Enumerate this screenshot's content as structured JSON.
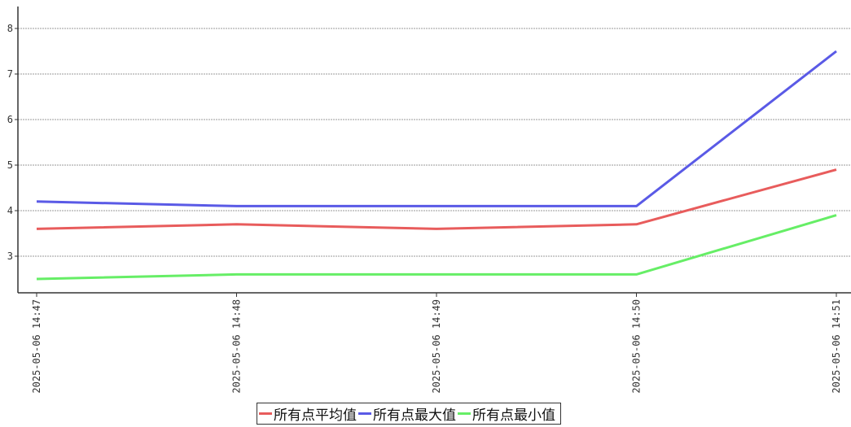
{
  "chart_data": {
    "type": "line",
    "x": [
      "2025-05-06 14:47",
      "2025-05-06 14:48",
      "2025-05-06 14:49",
      "2025-05-06 14:50",
      "2025-05-06 14:51"
    ],
    "series": [
      {
        "name": "所有点平均值",
        "color": "#e85c5c",
        "values": [
          3.6,
          3.7,
          3.6,
          3.7,
          4.9
        ]
      },
      {
        "name": "所有点最大值",
        "color": "#5a5ae6",
        "values": [
          4.2,
          4.1,
          4.1,
          4.1,
          7.5
        ]
      },
      {
        "name": "所有点最小值",
        "color": "#66ee66",
        "values": [
          2.5,
          2.6,
          2.6,
          2.6,
          3.9
        ]
      }
    ],
    "yticks": [
      3,
      4,
      5,
      6,
      7,
      8
    ],
    "ylim": [
      2.25,
      8.5
    ],
    "grid": true,
    "legend_position": "bottom-center"
  }
}
